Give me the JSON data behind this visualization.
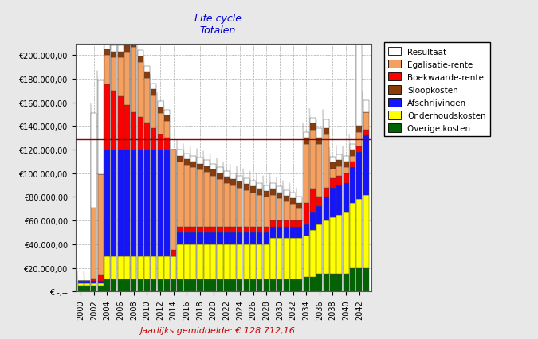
{
  "title_line1": "Life cycle",
  "title_line2": "Totalen",
  "title_color": "#0000cc",
  "avg_label": "Jaarlijks gemiddelde: € 128.712,16",
  "avg_color": "#cc0000",
  "avg_value": 128712.16,
  "ylim_max": 210000,
  "years": [
    2000,
    2001,
    2002,
    2003,
    2004,
    2005,
    2006,
    2007,
    2008,
    2009,
    2010,
    2011,
    2012,
    2013,
    2014,
    2015,
    2016,
    2017,
    2018,
    2019,
    2020,
    2021,
    2022,
    2023,
    2024,
    2025,
    2026,
    2027,
    2028,
    2029,
    2030,
    2031,
    2032,
    2033,
    2034,
    2035,
    2036,
    2037,
    2038,
    2039,
    2040,
    2041,
    2042,
    2043
  ],
  "colors": {
    "resultaat": "#ffffff",
    "egalisatie": "#f4a060",
    "boekwaarde": "#ff0000",
    "sloopkosten": "#8b3a0a",
    "afschrijvingen": "#1414ff",
    "onderhoudskosten": "#ffff00",
    "overige": "#006400"
  },
  "overige": [
    5000,
    5000,
    5000,
    5000,
    10000,
    10000,
    10000,
    10000,
    10000,
    10000,
    10000,
    10000,
    10000,
    10000,
    10000,
    10000,
    10000,
    10000,
    10000,
    10000,
    10000,
    10000,
    10000,
    10000,
    10000,
    10000,
    10000,
    10000,
    10000,
    10000,
    10000,
    10000,
    10000,
    10000,
    12000,
    12000,
    15000,
    15000,
    15000,
    15000,
    15000,
    20000,
    20000,
    20000
  ],
  "onderhoudskosten": [
    2000,
    2000,
    2000,
    2000,
    20000,
    20000,
    20000,
    20000,
    20000,
    20000,
    20000,
    20000,
    20000,
    20000,
    20000,
    30000,
    30000,
    30000,
    30000,
    30000,
    30000,
    30000,
    30000,
    30000,
    30000,
    30000,
    30000,
    30000,
    30000,
    35000,
    35000,
    35000,
    35000,
    35000,
    35000,
    40000,
    42000,
    45000,
    48000,
    50000,
    52000,
    55000,
    58000,
    62000
  ],
  "afschrijvingen": [
    2000,
    2000,
    2000,
    2000,
    90000,
    90000,
    90000,
    90000,
    90000,
    90000,
    90000,
    90000,
    90000,
    90000,
    0,
    10000,
    10000,
    10000,
    10000,
    10000,
    10000,
    10000,
    10000,
    10000,
    10000,
    10000,
    10000,
    10000,
    10000,
    10000,
    10000,
    10000,
    10000,
    10000,
    10000,
    15000,
    15000,
    20000,
    25000,
    25000,
    25000,
    30000,
    40000,
    50000
  ],
  "boekwaarde": [
    0,
    0,
    2000,
    5000,
    55000,
    50000,
    45000,
    38000,
    32000,
    28000,
    23000,
    18000,
    13000,
    10000,
    5000,
    5000,
    5000,
    5000,
    5000,
    5000,
    5000,
    5000,
    5000,
    5000,
    5000,
    5000,
    5000,
    5000,
    5000,
    5000,
    5000,
    5000,
    5000,
    5000,
    18000,
    20000,
    8000,
    8000,
    8000,
    8000,
    8000,
    5000,
    5000,
    5000
  ],
  "egalisatie": [
    0,
    0,
    60000,
    85000,
    25000,
    28000,
    33000,
    45000,
    55000,
    46000,
    38000,
    28000,
    18000,
    14000,
    85000,
    55000,
    52000,
    50000,
    48000,
    46000,
    43000,
    40000,
    37000,
    35000,
    33000,
    31000,
    29000,
    27000,
    25000,
    22000,
    19000,
    16000,
    14000,
    10000,
    50000,
    50000,
    45000,
    45000,
    8000,
    8000,
    5000,
    5000,
    12000,
    15000
  ],
  "sloopkosten": [
    0,
    0,
    0,
    0,
    5000,
    5000,
    5000,
    5000,
    5000,
    5000,
    5000,
    5000,
    5000,
    5000,
    0,
    5000,
    5000,
    5000,
    5000,
    5000,
    5000,
    5000,
    5000,
    5000,
    5000,
    5000,
    5000,
    5000,
    5000,
    5000,
    5000,
    5000,
    5000,
    5000,
    5000,
    5000,
    5000,
    5000,
    5000,
    5000,
    5000,
    5000,
    5000,
    0
  ],
  "resultaat": [
    0,
    0,
    80000,
    80000,
    5000,
    5000,
    5000,
    5000,
    5000,
    5000,
    5000,
    5000,
    5000,
    5000,
    0,
    5000,
    5000,
    5000,
    5000,
    5000,
    5000,
    5000,
    5000,
    5000,
    5000,
    5000,
    5000,
    5000,
    5000,
    5000,
    5000,
    5000,
    5000,
    5000,
    5000,
    5000,
    8000,
    8000,
    5000,
    5000,
    5000,
    5000,
    70000,
    10000
  ],
  "background_color": "#e8e8e8",
  "plot_bg_color": "#ffffff",
  "grid_color": "#999999",
  "hline_color": "#8b0000"
}
